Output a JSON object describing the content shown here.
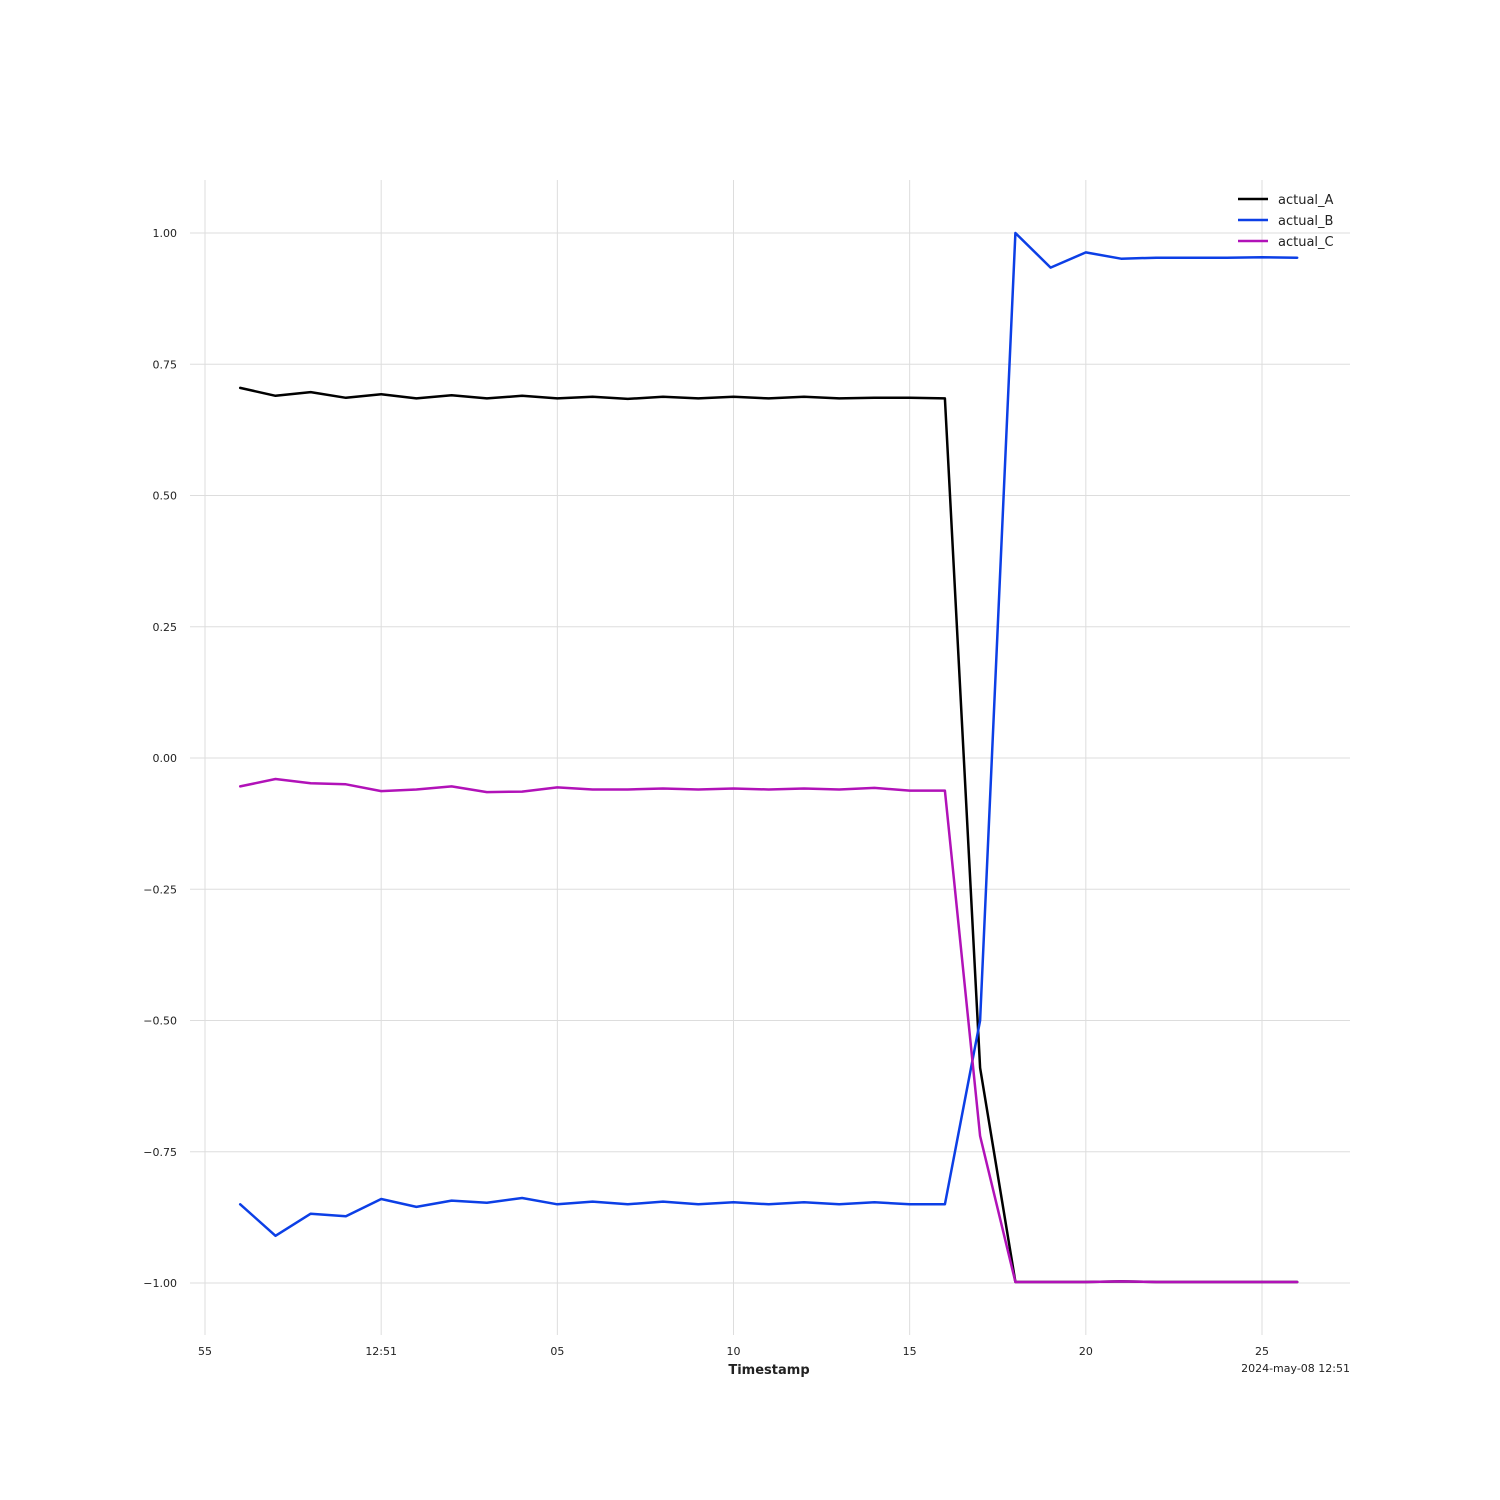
{
  "chart_data": {
    "type": "line",
    "xlabel": "Timestamp",
    "ylabel": "",
    "x_offset_label": "2024-may-08 12:51",
    "x_domain": [
      -1,
      31.5
    ],
    "x_ticks": [
      {
        "value": 0,
        "label": "55"
      },
      {
        "value": 5,
        "label": "12:51"
      },
      {
        "value": 10,
        "label": "05"
      },
      {
        "value": 15,
        "label": "10"
      },
      {
        "value": 20,
        "label": "15"
      },
      {
        "value": 25,
        "label": "20"
      },
      {
        "value": 30,
        "label": "25"
      }
    ],
    "ylim": [
      -1.1,
      1.1
    ],
    "y_ticks": [
      {
        "value": 1.0,
        "label": "1.00"
      },
      {
        "value": 0.75,
        "label": "0.75"
      },
      {
        "value": 0.5,
        "label": "0.50"
      },
      {
        "value": 0.25,
        "label": "0.25"
      },
      {
        "value": 0.0,
        "label": "0.00"
      },
      {
        "value": -0.25,
        "label": "−0.25"
      },
      {
        "value": -0.5,
        "label": "−0.50"
      },
      {
        "value": -0.75,
        "label": "−0.75"
      },
      {
        "value": -1.0,
        "label": "−1.00"
      }
    ],
    "grid": true,
    "legend_position": "top-right",
    "x": [
      0,
      1,
      2,
      3,
      4,
      5,
      6,
      7,
      8,
      9,
      10,
      11,
      12,
      13,
      14,
      15,
      16,
      17,
      18,
      19,
      20,
      21,
      22,
      23,
      24,
      25,
      26,
      27,
      28,
      29,
      30
    ],
    "series": [
      {
        "name": "actual_A",
        "color": "#000000",
        "values": [
          0.705,
          0.69,
          0.697,
          0.686,
          0.693,
          0.685,
          0.691,
          0.685,
          0.69,
          0.685,
          0.688,
          0.684,
          0.688,
          0.685,
          0.688,
          0.685,
          0.688,
          0.685,
          0.686,
          0.686,
          0.685,
          -0.59,
          -0.998,
          -0.998,
          -0.998,
          -0.997,
          -0.998,
          -0.998,
          -0.998,
          -0.998,
          -0.998
        ]
      },
      {
        "name": "actual_B",
        "color": "#0c3fe6",
        "values": [
          -0.85,
          -0.91,
          -0.868,
          -0.873,
          -0.84,
          -0.855,
          -0.843,
          -0.847,
          -0.838,
          -0.85,
          -0.845,
          -0.85,
          -0.845,
          -0.85,
          -0.846,
          -0.85,
          -0.846,
          -0.85,
          -0.846,
          -0.85,
          -0.85,
          -0.5,
          1.0,
          0.934,
          0.963,
          0.951,
          0.953,
          0.953,
          0.953,
          0.954,
          0.953
        ]
      },
      {
        "name": "actual_C",
        "color": "#b112b8",
        "values": [
          -0.054,
          -0.04,
          -0.048,
          -0.05,
          -0.063,
          -0.06,
          -0.054,
          -0.065,
          -0.064,
          -0.056,
          -0.06,
          -0.06,
          -0.058,
          -0.06,
          -0.058,
          -0.06,
          -0.058,
          -0.06,
          -0.057,
          -0.062,
          -0.062,
          -0.72,
          -0.998,
          -0.998,
          -0.998,
          -0.997,
          -0.998,
          -0.998,
          -0.998,
          -0.998,
          -0.998
        ]
      }
    ]
  }
}
